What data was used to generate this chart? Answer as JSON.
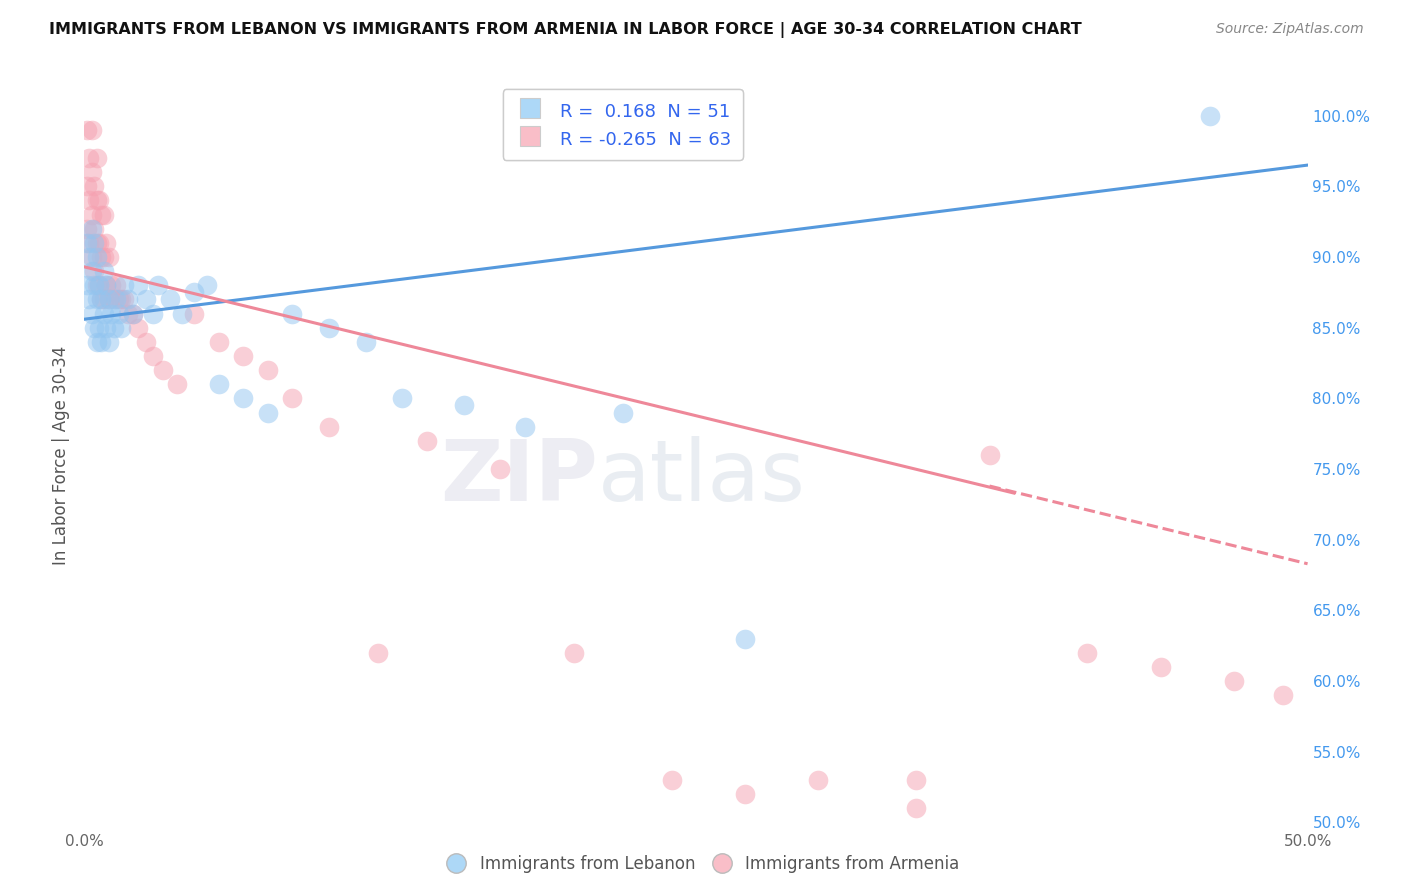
{
  "title": "IMMIGRANTS FROM LEBANON VS IMMIGRANTS FROM ARMENIA IN LABOR FORCE | AGE 30-34 CORRELATION CHART",
  "source": "Source: ZipAtlas.com",
  "ylabel": "In Labor Force | Age 30-34",
  "watermark_zip": "ZIP",
  "watermark_atlas": "atlas",
  "xlim": [
    0.0,
    0.5
  ],
  "ylim": [
    0.495,
    1.025
  ],
  "R_lebanon": 0.168,
  "N_lebanon": 51,
  "R_armenia": -0.265,
  "N_armenia": 63,
  "color_lebanon": "#92C5F0",
  "color_armenia": "#F5A0B0",
  "legend_color_lebanon": "#ADD8F7",
  "legend_color_armenia": "#F9BEC8",
  "line_color_lebanon": "#5599DD",
  "line_color_armenia": "#EE8899",
  "background_color": "#FFFFFF",
  "grid_color": "#DDCCEE",
  "leb_line_x0": 0.0,
  "leb_line_y0": 0.856,
  "leb_line_x1": 0.5,
  "leb_line_y1": 0.965,
  "arm_line_x0": 0.0,
  "arm_line_y0": 0.893,
  "arm_line_x1": 0.38,
  "arm_line_y1": 0.733,
  "arm_line_dash_x0": 0.37,
  "arm_line_dash_y0": 0.738,
  "arm_line_dash_x1": 0.5,
  "arm_line_dash_y1": 0.683,
  "scatter_lebanon_x": [
    0.001,
    0.001,
    0.002,
    0.002,
    0.003,
    0.003,
    0.003,
    0.004,
    0.004,
    0.004,
    0.005,
    0.005,
    0.005,
    0.006,
    0.006,
    0.007,
    0.007,
    0.008,
    0.008,
    0.009,
    0.009,
    0.01,
    0.01,
    0.011,
    0.012,
    0.013,
    0.014,
    0.015,
    0.016,
    0.018,
    0.02,
    0.022,
    0.025,
    0.028,
    0.03,
    0.035,
    0.04,
    0.045,
    0.05,
    0.055,
    0.065,
    0.075,
    0.085,
    0.1,
    0.115,
    0.13,
    0.155,
    0.18,
    0.22,
    0.27,
    0.46
  ],
  "scatter_lebanon_y": [
    0.88,
    0.91,
    0.87,
    0.9,
    0.86,
    0.89,
    0.92,
    0.85,
    0.88,
    0.91,
    0.84,
    0.87,
    0.9,
    0.85,
    0.88,
    0.84,
    0.87,
    0.86,
    0.89,
    0.85,
    0.88,
    0.84,
    0.87,
    0.86,
    0.85,
    0.87,
    0.86,
    0.85,
    0.88,
    0.87,
    0.86,
    0.88,
    0.87,
    0.86,
    0.88,
    0.87,
    0.86,
    0.875,
    0.88,
    0.81,
    0.8,
    0.79,
    0.86,
    0.85,
    0.84,
    0.8,
    0.795,
    0.78,
    0.79,
    0.63,
    1.0
  ],
  "scatter_armenia_x": [
    0.001,
    0.001,
    0.001,
    0.002,
    0.002,
    0.002,
    0.003,
    0.003,
    0.003,
    0.003,
    0.004,
    0.004,
    0.004,
    0.005,
    0.005,
    0.005,
    0.005,
    0.006,
    0.006,
    0.006,
    0.007,
    0.007,
    0.007,
    0.008,
    0.008,
    0.008,
    0.009,
    0.009,
    0.01,
    0.01,
    0.011,
    0.012,
    0.013,
    0.014,
    0.015,
    0.016,
    0.018,
    0.02,
    0.022,
    0.025,
    0.028,
    0.032,
    0.038,
    0.045,
    0.055,
    0.065,
    0.075,
    0.085,
    0.1,
    0.12,
    0.14,
    0.17,
    0.2,
    0.24,
    0.27,
    0.3,
    0.34,
    0.37,
    0.41,
    0.44,
    0.47,
    0.49,
    0.34
  ],
  "scatter_armenia_y": [
    0.92,
    0.95,
    0.99,
    0.91,
    0.94,
    0.97,
    0.9,
    0.93,
    0.96,
    0.99,
    0.89,
    0.92,
    0.95,
    0.88,
    0.91,
    0.94,
    0.97,
    0.88,
    0.91,
    0.94,
    0.87,
    0.9,
    0.93,
    0.87,
    0.9,
    0.93,
    0.88,
    0.91,
    0.87,
    0.9,
    0.88,
    0.87,
    0.88,
    0.87,
    0.87,
    0.87,
    0.86,
    0.86,
    0.85,
    0.84,
    0.83,
    0.82,
    0.81,
    0.86,
    0.84,
    0.83,
    0.82,
    0.8,
    0.78,
    0.62,
    0.77,
    0.75,
    0.62,
    0.53,
    0.52,
    0.53,
    0.51,
    0.76,
    0.62,
    0.61,
    0.6,
    0.59,
    0.53
  ]
}
